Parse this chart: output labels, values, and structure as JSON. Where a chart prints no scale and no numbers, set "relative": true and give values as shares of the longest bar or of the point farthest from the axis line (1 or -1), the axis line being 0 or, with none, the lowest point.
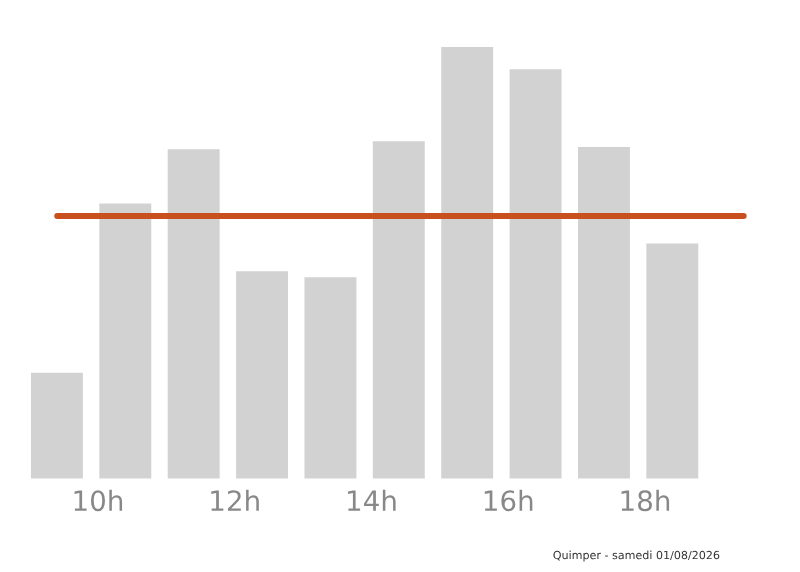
{
  "chart_data": {
    "type": "bar",
    "relative": true,
    "categories": [
      null,
      "10h",
      null,
      "12h",
      null,
      "14h",
      null,
      "16h",
      null,
      "18h"
    ],
    "values": [
      0.25,
      0.64,
      0.765,
      0.484,
      0.47,
      0.783,
      1,
      0.949,
      0.77,
      0.548
    ],
    "color": "#d3d2d3",
    "ref_lines": [
      {
        "axis": "y",
        "value": 0.608,
        "color": "#c8501e",
        "line_style": "solid"
      }
    ],
    "annotations": [
      "Quimper - samedi 01/08/2026"
    ],
    "grid": false,
    "legend": false
  }
}
